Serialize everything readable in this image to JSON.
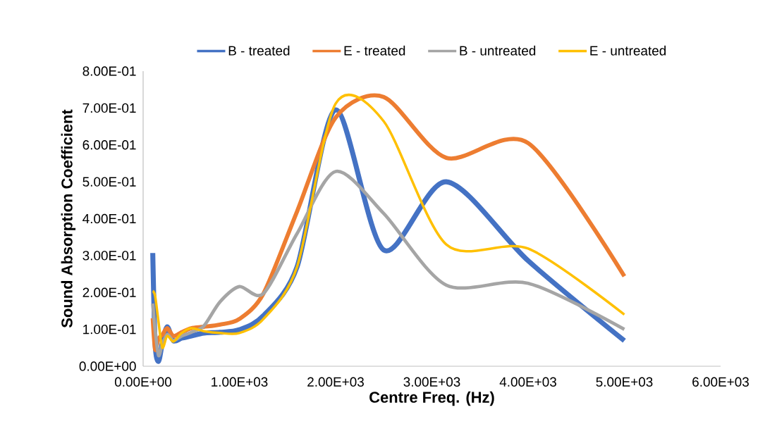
{
  "chart_data": {
    "type": "line",
    "xlabel": "Centre Freq. (Hz)",
    "ylabel": "Sound Absorption Coefficient",
    "x": [
      100,
      125,
      160,
      200,
      250,
      315,
      400,
      500,
      630,
      800,
      1000,
      1250,
      1600,
      2000,
      2500,
      3150,
      4000,
      5000
    ],
    "series": [
      {
        "name": "B - treated",
        "color": "#4472c4",
        "values": [
          0.307,
          0.06,
          0.013,
          0.063,
          0.107,
          0.069,
          0.076,
          0.082,
          0.09,
          0.092,
          0.099,
          0.137,
          0.27,
          0.695,
          0.315,
          0.5,
          0.286,
          0.069
        ]
      },
      {
        "name": "E - treated",
        "color": "#ed7d31",
        "values": [
          0.13,
          0.045,
          0.075,
          0.085,
          0.103,
          0.082,
          0.092,
          0.103,
          0.107,
          0.113,
          0.128,
          0.197,
          0.42,
          0.674,
          0.73,
          0.565,
          0.605,
          0.244
        ]
      },
      {
        "name": "B - untreated",
        "color": "#a5a5a5",
        "values": [
          0.17,
          0.1,
          0.029,
          0.06,
          0.086,
          0.07,
          0.082,
          0.092,
          0.109,
          0.175,
          0.216,
          0.197,
          0.36,
          0.528,
          0.414,
          0.22,
          0.225,
          0.1
        ]
      },
      {
        "name": "E - untreated",
        "color": "#ffc000",
        "values": [
          0.204,
          0.19,
          0.12,
          0.05,
          0.082,
          0.067,
          0.09,
          0.103,
          0.095,
          0.09,
          0.09,
          0.128,
          0.27,
          0.712,
          0.664,
          0.33,
          0.319,
          0.14
        ]
      }
    ],
    "xlim": [
      0,
      6000
    ],
    "xticks": [
      {
        "value": 0,
        "label": "0.00E+00"
      },
      {
        "value": 1000,
        "label": "1.00E+03"
      },
      {
        "value": 2000,
        "label": "2.00E+03"
      },
      {
        "value": 3000,
        "label": "3.00E+03"
      },
      {
        "value": 4000,
        "label": "4.00E+03"
      },
      {
        "value": 5000,
        "label": "5.00E+03"
      },
      {
        "value": 6000,
        "label": "6.00E+03"
      }
    ],
    "ylim": [
      0,
      0.8
    ],
    "yticks": [
      {
        "value": 0,
        "label": "0.00E+00"
      },
      {
        "value": 0.1,
        "label": "1.00E-01"
      },
      {
        "value": 0.2,
        "label": "2.00E-01"
      },
      {
        "value": 0.3,
        "label": "3.00E-01"
      },
      {
        "value": 0.4,
        "label": "4.00E-01"
      },
      {
        "value": 0.5,
        "label": "5.00E-01"
      },
      {
        "value": 0.6,
        "label": "6.00E-01"
      },
      {
        "value": 0.7,
        "label": "7.00E-01"
      },
      {
        "value": 0.8,
        "label": "8.00E-01"
      }
    ],
    "grid": false,
    "legend": "top",
    "marker": "none",
    "line_style": "solid"
  }
}
